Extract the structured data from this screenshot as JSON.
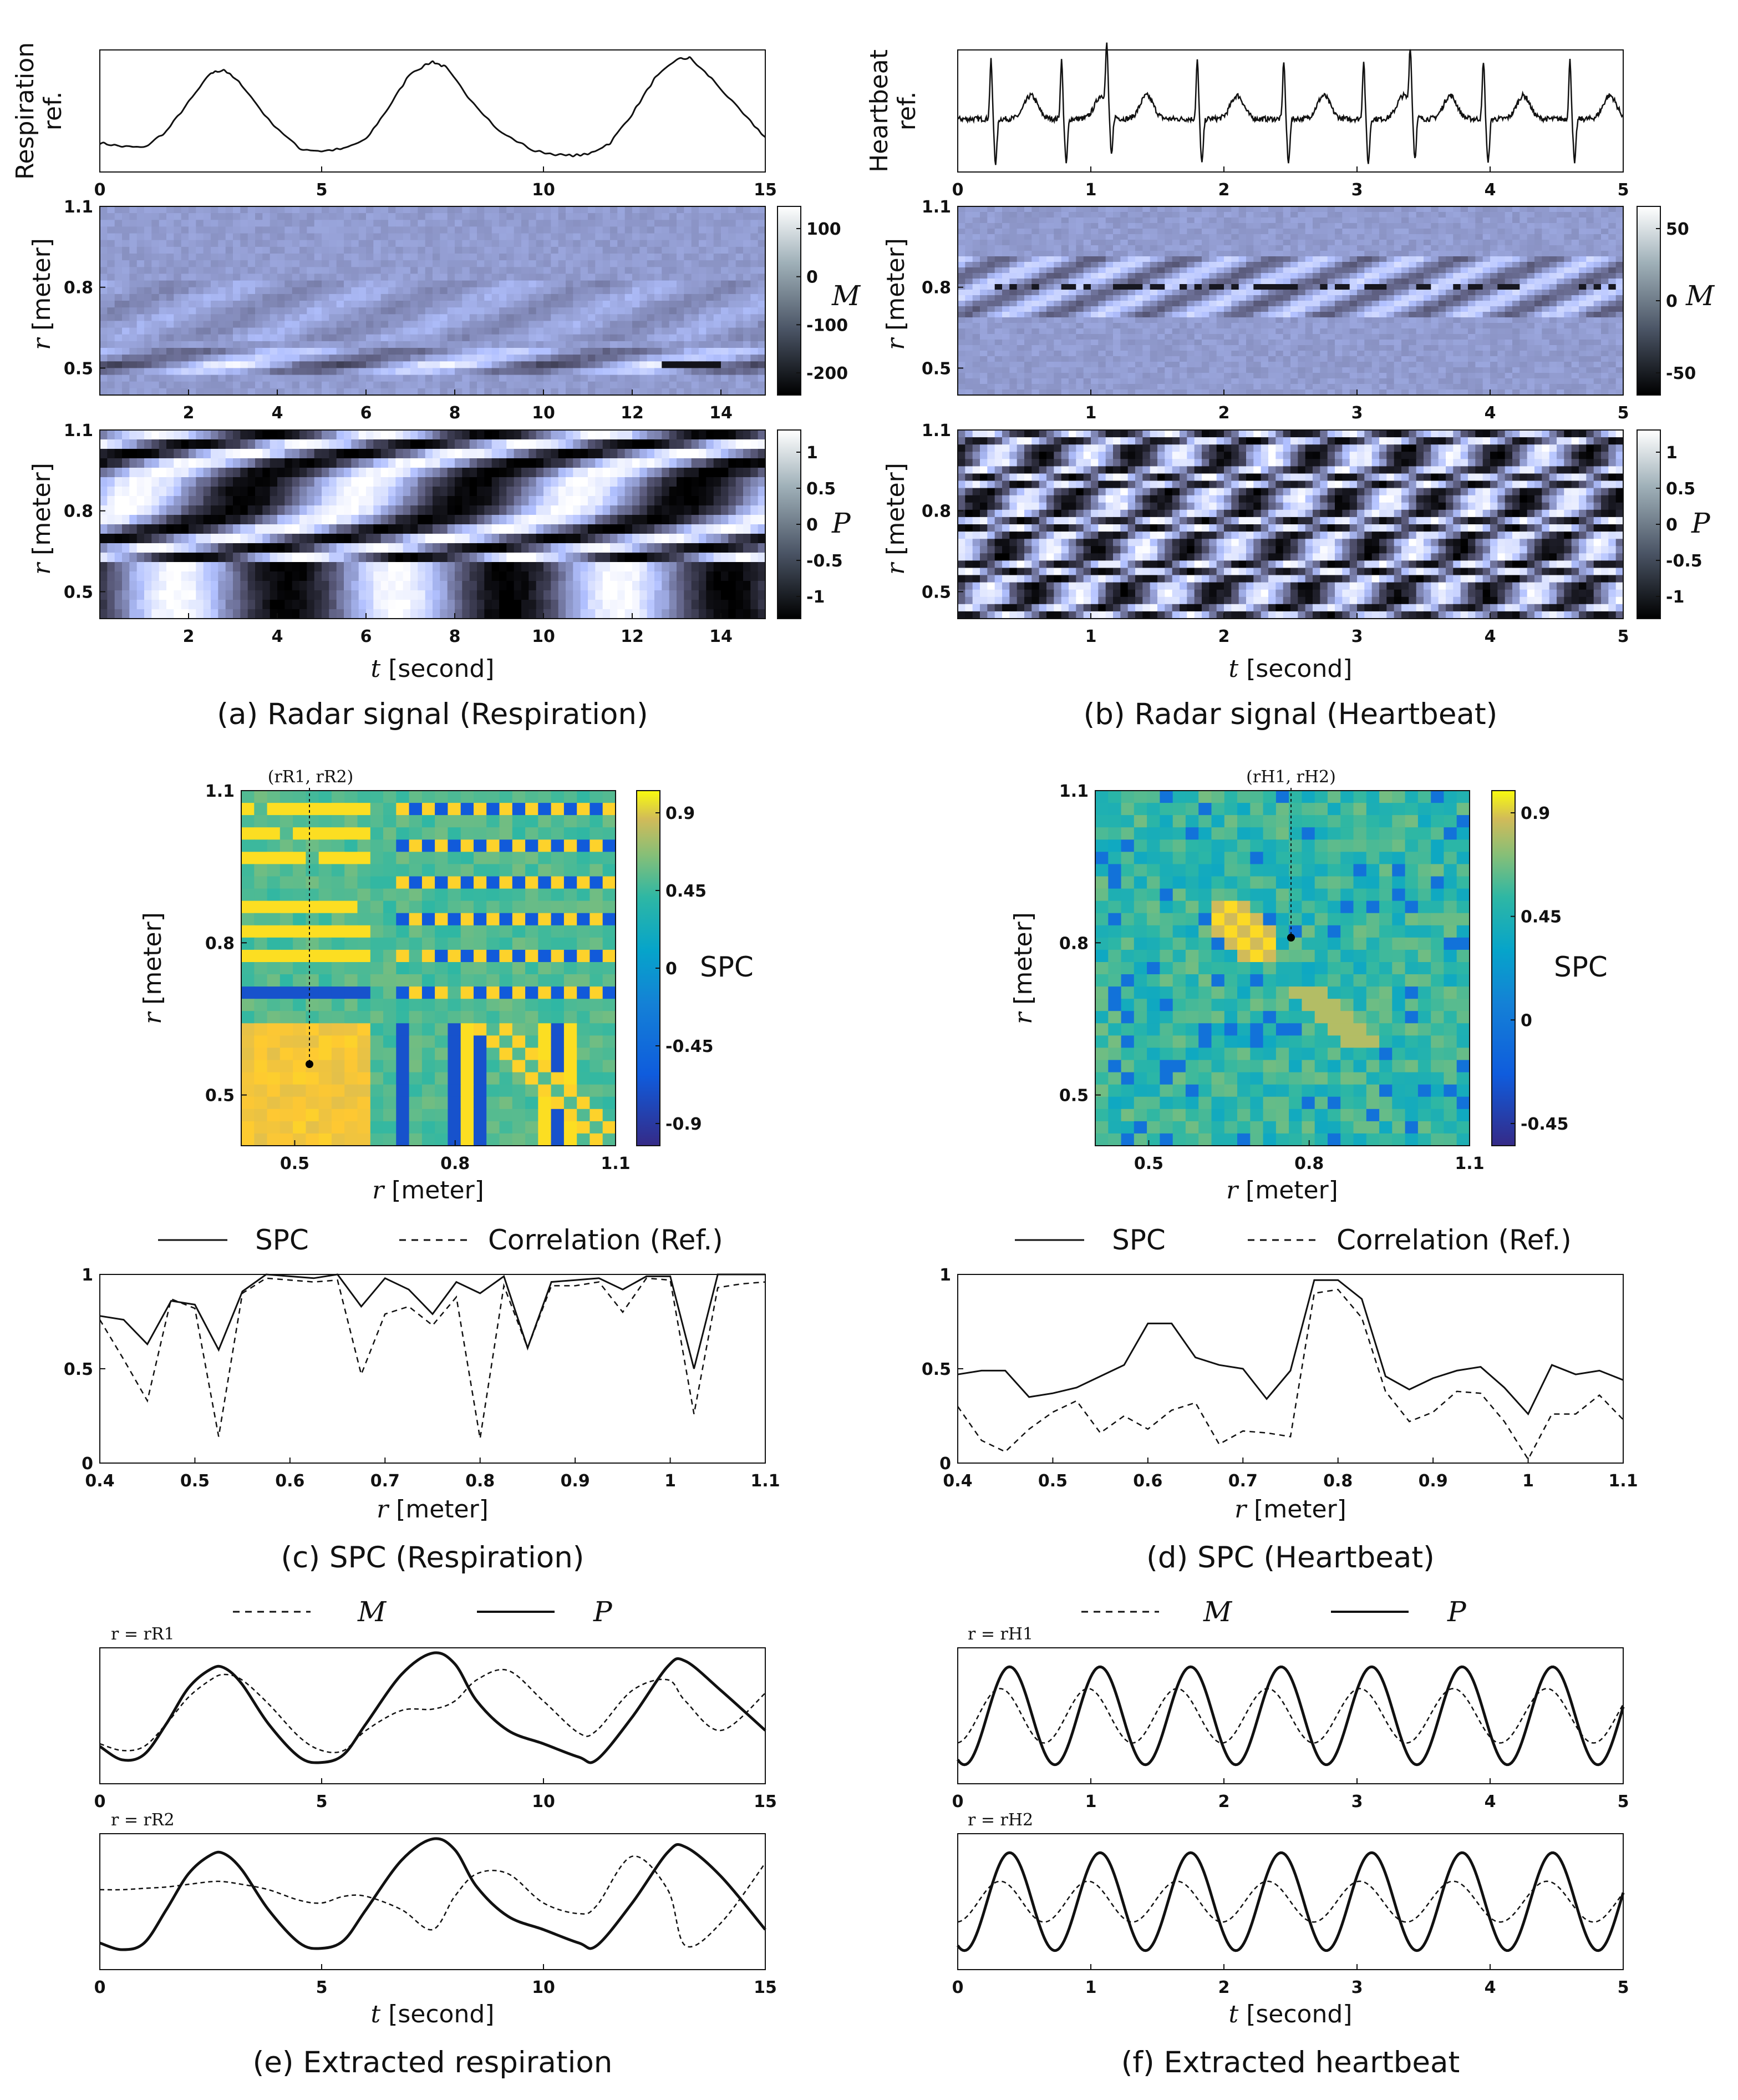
{
  "captions": {
    "a": "(a) Radar signal (Respiration)",
    "b": "(b) Radar signal (Heartbeat)",
    "c": "(c) SPC (Respiration)",
    "d": "(d) SPC (Heartbeat)",
    "e": "(e) Extracted respiration",
    "f": "(f) Extracted heartbeat"
  },
  "labels": {
    "resp_ref_line1": "Respiration",
    "ref_line2": "ref.",
    "heart_ref_line1": "Heartbeat",
    "r_symbol": "r",
    "meter_unit": "[meter]",
    "t_symbol": "t",
    "second_unit": "[second]",
    "M": "M",
    "P": "P",
    "SPC": "SPC",
    "corr_ref": "Correlation (Ref.)",
    "point_R": "(rR1, rR2)",
    "point_H": "(rH1, rH2)",
    "r_eq_R1": "r = rR1",
    "r_eq_R2": "r = rR2",
    "r_eq_H1": "r = rH1",
    "r_eq_H2": "r = rH2"
  },
  "colors": {
    "line": "#111111",
    "parula_low": "#352a87",
    "parula_mid": "#20b2aa",
    "parula_high": "#f9fb0e"
  },
  "chart_data": [
    {
      "id": "a_ref",
      "type": "line",
      "title": "Respiration ref.",
      "x": [
        0,
        0.5,
        1,
        1.5,
        2,
        2.5,
        2.8,
        3.2,
        3.8,
        4.5,
        5,
        5.5,
        6,
        6.5,
        7,
        7.5,
        7.8,
        8.3,
        9,
        9.8,
        10.5,
        11,
        11.5,
        12,
        12.5,
        13,
        13.3,
        13.8,
        14.5,
        15
      ],
      "values": [
        0.25,
        0.22,
        0.21,
        0.35,
        0.6,
        0.85,
        0.88,
        0.75,
        0.45,
        0.2,
        0.18,
        0.2,
        0.28,
        0.55,
        0.85,
        0.95,
        0.9,
        0.65,
        0.35,
        0.18,
        0.14,
        0.15,
        0.25,
        0.5,
        0.8,
        0.97,
        0.98,
        0.8,
        0.5,
        0.3
      ],
      "xticks": [
        0,
        5,
        10,
        15
      ],
      "xlim": [
        0,
        15
      ]
    },
    {
      "id": "a_M",
      "type": "heatmap",
      "title": "M",
      "xticks": [
        2,
        4,
        6,
        8,
        10,
        12,
        14
      ],
      "yticks": [
        0.5,
        0.8,
        1.1
      ],
      "xlim": [
        0,
        15
      ],
      "ylim": [
        0.4,
        1.1
      ],
      "colorbar": [
        100,
        0,
        -100,
        -200
      ],
      "colormap": "bone",
      "ylabel": "r [meter]"
    },
    {
      "id": "a_P",
      "type": "heatmap",
      "title": "P",
      "xticks": [
        2,
        4,
        6,
        8,
        10,
        12,
        14
      ],
      "yticks": [
        0.5,
        0.8,
        1.1
      ],
      "xlim": [
        0,
        15
      ],
      "ylim": [
        0.4,
        1.1
      ],
      "colorbar": [
        1,
        0.5,
        0,
        -0.5,
        -1
      ],
      "colormap": "bone",
      "xlabel": "t [second]",
      "ylabel": "r [meter]"
    },
    {
      "id": "b_ref",
      "type": "line",
      "title": "Heartbeat ref.",
      "beat_times": [
        0.25,
        0.78,
        1.12,
        1.8,
        2.45,
        3.05,
        3.4,
        3.95,
        4.6
      ],
      "xticks": [
        0,
        1,
        2,
        3,
        4,
        5
      ],
      "xlim": [
        0,
        5
      ]
    },
    {
      "id": "b_M",
      "type": "heatmap",
      "title": "M",
      "xticks": [
        1,
        2,
        3,
        4,
        5
      ],
      "yticks": [
        0.5,
        0.8,
        1.1
      ],
      "xlim": [
        0,
        5
      ],
      "ylim": [
        0.4,
        1.1
      ],
      "colorbar": [
        50,
        0,
        -50
      ],
      "colormap": "bone",
      "ylabel": "r [meter]"
    },
    {
      "id": "b_P",
      "type": "heatmap",
      "title": "P",
      "xticks": [
        1,
        2,
        3,
        4,
        5
      ],
      "yticks": [
        0.5,
        0.8,
        1.1
      ],
      "xlim": [
        0,
        5
      ],
      "ylim": [
        0.4,
        1.1
      ],
      "colorbar": [
        1,
        0.5,
        0,
        -0.5,
        -1
      ],
      "colormap": "bone",
      "xlabel": "t [second]",
      "ylabel": "r [meter]"
    },
    {
      "id": "c_matrix",
      "type": "heatmap",
      "title": "SPC",
      "xticks": [
        0.5,
        0.8,
        1.1
      ],
      "yticks": [
        0.5,
        0.8,
        1.1
      ],
      "xlim": [
        0.4,
        1.1
      ],
      "ylim": [
        0.4,
        1.1
      ],
      "colorbar": [
        0.9,
        0.45,
        0,
        -0.45,
        -0.9
      ],
      "colormap": "parula",
      "marked_point": [
        0.53,
        0.53
      ],
      "xlabel": "r [meter]",
      "ylabel": "r [meter]"
    },
    {
      "id": "d_matrix",
      "type": "heatmap",
      "title": "SPC",
      "xticks": [
        0.5,
        0.8,
        1.1
      ],
      "yticks": [
        0.5,
        0.8,
        1.1
      ],
      "xlim": [
        0.4,
        1.1
      ],
      "ylim": [
        0.4,
        1.1
      ],
      "colorbar": [
        0.9,
        0.45,
        0,
        -0.45
      ],
      "colormap": "parula",
      "marked_point": [
        0.79,
        0.81
      ],
      "xlabel": "r [meter]",
      "ylabel": "r [meter]"
    },
    {
      "id": "c_line",
      "type": "line",
      "xlim": [
        0.4,
        1.1
      ],
      "ylim": [
        0,
        1
      ],
      "xticks": [
        0.4,
        0.5,
        0.6,
        0.7,
        0.8,
        0.9,
        1,
        1.1
      ],
      "xtick_labels": [
        "0.4",
        "0.5",
        "0.6",
        "0.7",
        "0.8",
        "0.9",
        "1",
        "1.1"
      ],
      "yticks": [
        0,
        0.5,
        1
      ],
      "xlabel": "r [meter]",
      "x": [
        0.4,
        0.425,
        0.45,
        0.475,
        0.5,
        0.525,
        0.55,
        0.575,
        0.6,
        0.625,
        0.65,
        0.675,
        0.7,
        0.725,
        0.75,
        0.775,
        0.8,
        0.825,
        0.85,
        0.875,
        0.9,
        0.925,
        0.95,
        0.975,
        1.0,
        1.025,
        1.05,
        1.075,
        1.1
      ],
      "series": [
        {
          "name": "SPC",
          "style": "solid",
          "values": [
            0.78,
            0.76,
            0.63,
            0.86,
            0.84,
            0.6,
            0.91,
            1.0,
            0.99,
            0.98,
            1.0,
            0.83,
            0.98,
            0.92,
            0.79,
            0.96,
            0.9,
            0.99,
            0.61,
            0.96,
            0.97,
            0.98,
            0.92,
            0.99,
            0.99,
            0.5,
            1.0,
            1.0,
            1.0
          ]
        },
        {
          "name": "Correlation (Ref.)",
          "style": "dashed",
          "values": [
            0.76,
            0.55,
            0.33,
            0.87,
            0.82,
            0.14,
            0.9,
            0.98,
            0.97,
            0.96,
            0.97,
            0.47,
            0.79,
            0.83,
            0.73,
            0.88,
            0.13,
            0.94,
            0.61,
            0.94,
            0.94,
            0.96,
            0.8,
            0.98,
            0.97,
            0.26,
            0.93,
            0.95,
            0.96
          ]
        }
      ]
    },
    {
      "id": "d_line",
      "type": "line",
      "xlim": [
        0.4,
        1.1
      ],
      "ylim": [
        0,
        1
      ],
      "xticks": [
        0.4,
        0.5,
        0.6,
        0.7,
        0.8,
        0.9,
        1,
        1.1
      ],
      "xtick_labels": [
        "0.4",
        "0.5",
        "0.6",
        "0.7",
        "0.8",
        "0.9",
        "1",
        "1.1"
      ],
      "yticks": [
        0,
        0.5,
        1
      ],
      "xlabel": "r [meter]",
      "x": [
        0.4,
        0.425,
        0.45,
        0.475,
        0.5,
        0.525,
        0.55,
        0.575,
        0.6,
        0.625,
        0.65,
        0.675,
        0.7,
        0.725,
        0.75,
        0.775,
        0.8,
        0.825,
        0.85,
        0.875,
        0.9,
        0.925,
        0.95,
        0.975,
        1.0,
        1.025,
        1.05,
        1.075,
        1.1
      ],
      "series": [
        {
          "name": "SPC",
          "style": "solid",
          "values": [
            0.47,
            0.49,
            0.49,
            0.35,
            0.37,
            0.4,
            0.46,
            0.52,
            0.74,
            0.74,
            0.56,
            0.52,
            0.5,
            0.34,
            0.49,
            0.97,
            0.97,
            0.87,
            0.46,
            0.39,
            0.45,
            0.49,
            0.51,
            0.4,
            0.26,
            0.52,
            0.47,
            0.49,
            0.44
          ]
        },
        {
          "name": "Correlation (Ref.)",
          "style": "dashed",
          "values": [
            0.3,
            0.12,
            0.06,
            0.18,
            0.27,
            0.33,
            0.16,
            0.25,
            0.18,
            0.28,
            0.32,
            0.1,
            0.17,
            0.16,
            0.14,
            0.9,
            0.92,
            0.77,
            0.38,
            0.22,
            0.27,
            0.38,
            0.37,
            0.22,
            0.02,
            0.26,
            0.26,
            0.36,
            0.23
          ]
        }
      ]
    },
    {
      "id": "e_R1",
      "type": "line",
      "title": "r = rR1",
      "xlim": [
        0,
        15
      ],
      "xticks": [
        0,
        5,
        10,
        15
      ],
      "x": [
        0,
        0.5,
        1,
        1.5,
        2,
        2.5,
        2.8,
        3.2,
        3.8,
        4.5,
        5,
        5.5,
        6,
        6.8,
        7.5,
        8,
        8.5,
        9.2,
        10,
        10.8,
        11.2,
        12,
        12.8,
        13.2,
        14,
        15
      ],
      "series": [
        {
          "name": "M",
          "style": "dashed",
          "values": [
            0.3,
            0.25,
            0.28,
            0.45,
            0.65,
            0.78,
            0.82,
            0.78,
            0.6,
            0.35,
            0.25,
            0.25,
            0.4,
            0.55,
            0.56,
            0.62,
            0.78,
            0.85,
            0.62,
            0.38,
            0.4,
            0.7,
            0.78,
            0.62,
            0.4,
            0.68
          ]
        },
        {
          "name": "P",
          "style": "solid",
          "values": [
            0.28,
            0.18,
            0.22,
            0.45,
            0.72,
            0.86,
            0.87,
            0.75,
            0.45,
            0.2,
            0.16,
            0.22,
            0.45,
            0.82,
            0.98,
            0.9,
            0.62,
            0.4,
            0.3,
            0.2,
            0.18,
            0.5,
            0.88,
            0.92,
            0.7,
            0.4
          ]
        }
      ]
    },
    {
      "id": "e_R2",
      "type": "line",
      "title": "r = rR2",
      "xlim": [
        0,
        15
      ],
      "xticks": [
        0,
        5,
        10,
        15
      ],
      "xlabel": "t [second]",
      "x": [
        0,
        0.5,
        1,
        1.5,
        2,
        2.5,
        2.8,
        3.2,
        3.8,
        4.5,
        5,
        5.5,
        6,
        6.8,
        7.5,
        8,
        8.5,
        9.2,
        10,
        10.8,
        11.2,
        12,
        12.8,
        13.2,
        14,
        15
      ],
      "series": [
        {
          "name": "M",
          "style": "dashed",
          "values": [
            0.6,
            0.6,
            0.61,
            0.62,
            0.64,
            0.66,
            0.66,
            0.64,
            0.6,
            0.52,
            0.5,
            0.55,
            0.55,
            0.45,
            0.3,
            0.55,
            0.72,
            0.72,
            0.5,
            0.42,
            0.48,
            0.85,
            0.6,
            0.18,
            0.35,
            0.8
          ]
        },
        {
          "name": "P",
          "style": "solid",
          "values": [
            0.2,
            0.15,
            0.2,
            0.45,
            0.72,
            0.86,
            0.87,
            0.75,
            0.45,
            0.2,
            0.16,
            0.22,
            0.45,
            0.82,
            0.98,
            0.9,
            0.62,
            0.4,
            0.3,
            0.2,
            0.18,
            0.5,
            0.88,
            0.92,
            0.7,
            0.3
          ]
        }
      ]
    },
    {
      "id": "f_H1",
      "type": "line",
      "title": "r = rH1",
      "xlim": [
        0,
        5
      ],
      "xticks": [
        0,
        1,
        2,
        3,
        4,
        5
      ],
      "period": 0.68,
      "series": [
        {
          "name": "M",
          "style": "dashed",
          "amplitude": 0.2
        },
        {
          "name": "P",
          "style": "solid",
          "amplitude": 0.36
        }
      ]
    },
    {
      "id": "f_H2",
      "type": "line",
      "title": "r = rH2",
      "xlim": [
        0,
        5
      ],
      "xticks": [
        0,
        1,
        2,
        3,
        4,
        5
      ],
      "xlabel": "t [second]",
      "period": 0.68,
      "series": [
        {
          "name": "M",
          "style": "dashed",
          "amplitude": 0.15
        },
        {
          "name": "P",
          "style": "solid",
          "amplitude": 0.36
        }
      ]
    }
  ]
}
